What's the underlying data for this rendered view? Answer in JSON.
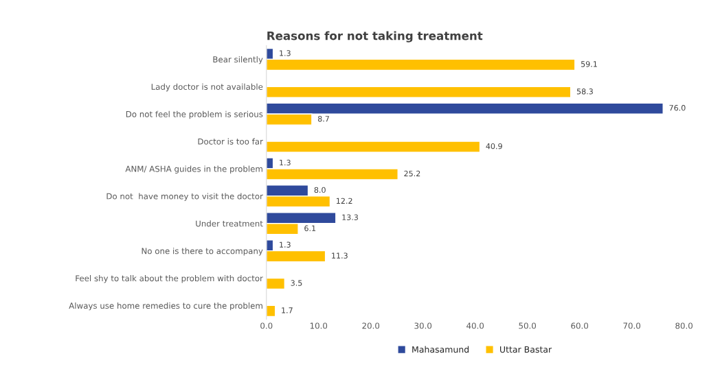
{
  "chart_data": {
    "type": "bar",
    "orientation": "horizontal",
    "title": "Reasons for not taking treatment",
    "categories": [
      "Bear silently",
      "Lady doctor is not available",
      "Do not feel the problem is serious",
      "Doctor is too far",
      "ANM/ ASHA guides in the problem",
      "Do not  have money to visit the doctor",
      "Under treatment",
      "No one is there to accompany",
      "Feel shy to talk about the problem with doctor",
      "Always use home remedies to cure the problem"
    ],
    "series": [
      {
        "name": "Mahasamund",
        "color": "#2f4a9c",
        "values": [
          1.3,
          null,
          76.0,
          null,
          1.3,
          8.0,
          13.3,
          1.3,
          null,
          null
        ],
        "value_labels": [
          "1.3",
          null,
          "76.0",
          null,
          "1.3",
          "8.0",
          "13.3",
          "1.3",
          null,
          null
        ]
      },
      {
        "name": "Uttar Bastar",
        "color": "#ffc000",
        "values": [
          59.1,
          58.3,
          8.7,
          40.9,
          25.2,
          12.2,
          6.1,
          11.3,
          3.5,
          1.7
        ],
        "value_labels": [
          "59.1",
          "58.3",
          "8.7",
          "40.9",
          "25.2",
          "12.2",
          "6.1",
          "11.3",
          "3.5",
          "1.7"
        ]
      }
    ],
    "xlim": [
      0,
      80
    ],
    "xticks": [
      {
        "value": 0,
        "label": "0.0"
      },
      {
        "value": 10,
        "label": "10.0"
      },
      {
        "value": 20,
        "label": "20.0"
      },
      {
        "value": 30,
        "label": "30.0"
      },
      {
        "value": 40,
        "label": "40.0"
      },
      {
        "value": 50,
        "label": "50.0"
      },
      {
        "value": 60,
        "label": "60.0"
      },
      {
        "value": 70,
        "label": "70.0"
      },
      {
        "value": 80,
        "label": "80.0"
      }
    ],
    "grid": false,
    "legend": "bottom"
  }
}
